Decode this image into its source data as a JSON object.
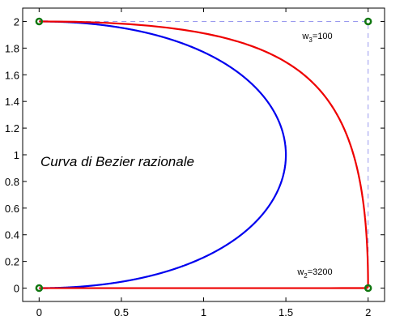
{
  "chart_data": {
    "type": "line",
    "title": "Curva di Bezier razionale",
    "xlim": [
      -0.1,
      2.1
    ],
    "ylim": [
      -0.1,
      2.1
    ],
    "xticks": [
      "0",
      "0.5",
      "1",
      "1.5",
      "2"
    ],
    "yticks": [
      "0",
      "0.2",
      "0.4",
      "0.6",
      "0.8",
      "1",
      "1.2",
      "1.4",
      "1.6",
      "1.8",
      "2"
    ],
    "grid": false,
    "control_polygon": {
      "color": "#9999ee",
      "style": "dashed",
      "points": [
        [
          0,
          0
        ],
        [
          2,
          0
        ],
        [
          2,
          2
        ],
        [
          0,
          2
        ]
      ]
    },
    "control_points": {
      "color": "#117711",
      "points": [
        [
          0,
          0
        ],
        [
          2,
          0
        ],
        [
          2,
          2
        ],
        [
          0,
          2
        ]
      ]
    },
    "series": [
      {
        "color": "#0000ee",
        "type": "rational-bezier",
        "control": [
          [
            0,
            0
          ],
          [
            2,
            0
          ],
          [
            2,
            2
          ],
          [
            0,
            2
          ]
        ],
        "weights": [
          1,
          1,
          1,
          1
        ]
      },
      {
        "color": "#ee0000",
        "type": "rational-bezier",
        "control": [
          [
            0,
            0
          ],
          [
            2,
            0
          ],
          [
            2,
            2
          ],
          [
            0,
            2
          ]
        ],
        "weights": [
          1,
          3200,
          100,
          1
        ]
      }
    ],
    "annotations": [
      {
        "base": "w",
        "sub": "3",
        "rest": "=100",
        "x": 1.6,
        "y": 1.87
      },
      {
        "base": "w",
        "sub": "2",
        "rest": "=3200",
        "x": 1.57,
        "y": 0.1
      }
    ]
  }
}
